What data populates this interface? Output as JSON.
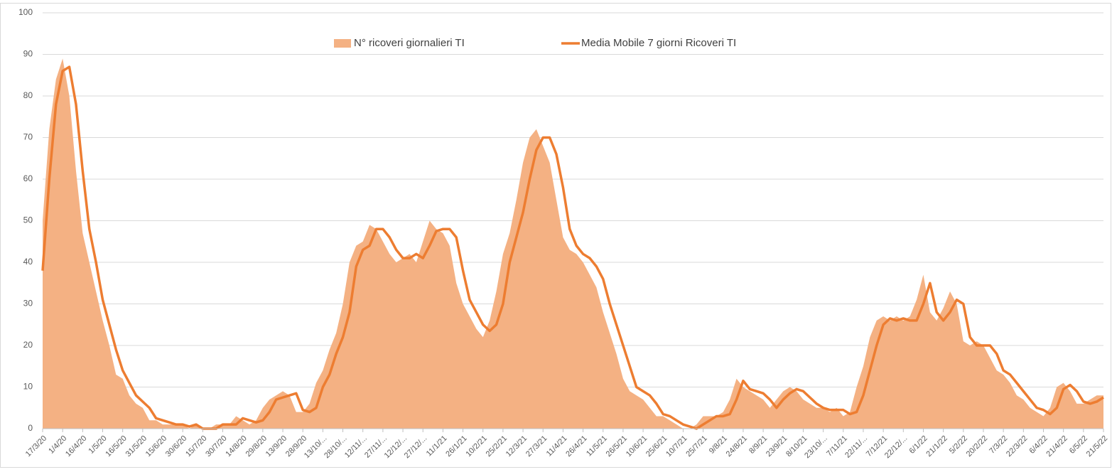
{
  "chart_data": {
    "type": "area-line",
    "categories": [
      "17/3/20",
      null,
      null,
      "1/4/20",
      null,
      null,
      "16/4/20",
      null,
      null,
      "1/5/20",
      null,
      null,
      "16/5/20",
      null,
      null,
      "31/5/20",
      null,
      null,
      "15/6/20",
      null,
      null,
      "30/6/20",
      null,
      null,
      "15/7/20",
      null,
      null,
      "30/7/20",
      null,
      null,
      "14/8/20",
      null,
      null,
      "29/8/20",
      null,
      null,
      "13/9/20",
      null,
      null,
      "28/9/20",
      null,
      null,
      "13/10/...",
      null,
      null,
      "28/10/...",
      null,
      null,
      "12/11/...",
      null,
      null,
      "27/11/...",
      null,
      null,
      "12/12/...",
      null,
      null,
      "27/12/...",
      null,
      null,
      "11/1/21",
      null,
      null,
      "26/1/21",
      null,
      null,
      "10/2/21",
      null,
      null,
      "25/2/21",
      null,
      null,
      "12/3/21",
      null,
      null,
      "27/3/21",
      null,
      null,
      "11/4/21",
      null,
      null,
      "26/4/21",
      null,
      null,
      "11/5/21",
      null,
      null,
      "26/5/21",
      null,
      null,
      "10/6/21",
      null,
      null,
      "25/6/21",
      null,
      null,
      "10/7/21",
      null,
      null,
      "25/7/21",
      null,
      null,
      "9/8/21",
      null,
      null,
      "24/8/21",
      null,
      null,
      "8/9/21",
      null,
      null,
      "23/9/21",
      null,
      null,
      "8/10/21",
      null,
      null,
      "23/10/...",
      null,
      null,
      "7/11/21",
      null,
      null,
      "22/11/...",
      null,
      null,
      "7/12/21",
      null,
      null,
      "22/12/...",
      null,
      null,
      "6/1/22",
      null,
      null,
      "21/1/22",
      null,
      null,
      "5/2/22",
      null,
      null,
      "20/2/22",
      null,
      null,
      "7/3/22",
      null,
      null,
      "22/3/22",
      null,
      null,
      "6/4/22",
      null,
      null,
      "21/4/22",
      null,
      null,
      "6/5/22",
      null,
      null,
      "21/5/22"
    ],
    "series": [
      {
        "name": "N° ricoveri giornalieri TI",
        "kind": "area",
        "color": "#f4b183",
        "values": [
          50,
          72,
          84,
          89,
          80,
          62,
          47,
          40,
          33,
          26,
          20,
          13,
          12,
          8,
          6,
          5,
          2,
          2,
          1,
          1,
          1,
          1,
          0,
          1,
          0,
          0,
          1,
          1,
          1,
          3,
          2,
          1,
          2,
          5,
          7,
          8,
          9,
          8,
          4,
          4,
          6,
          11,
          14,
          19,
          23,
          30,
          40,
          44,
          45,
          49,
          48,
          45,
          42,
          40,
          41,
          42,
          40,
          45,
          50,
          48,
          47,
          44,
          35,
          30,
          27,
          24,
          22,
          26,
          33,
          42,
          47,
          55,
          64,
          70,
          72,
          68,
          64,
          55,
          46,
          43,
          42,
          40,
          37,
          34,
          28,
          23,
          18,
          12,
          9,
          8,
          7,
          5,
          3,
          3,
          2,
          1,
          0,
          0,
          1,
          3,
          3,
          3,
          4,
          7,
          12,
          10,
          9,
          8,
          7,
          5,
          7,
          9,
          10,
          9,
          7,
          6,
          5,
          5,
          4,
          5,
          3,
          4,
          10,
          15,
          22,
          26,
          27,
          26,
          27,
          26,
          27,
          31,
          37,
          28,
          26,
          29,
          33,
          30,
          21,
          20,
          21,
          20,
          17,
          14,
          13,
          11,
          8,
          7,
          5,
          4,
          3,
          5,
          10,
          11,
          9,
          6,
          6,
          7,
          8,
          8
        ]
      },
      {
        "name": "Media Mobile 7 giorni Ricoveri TI",
        "kind": "line",
        "color": "#ed7d31",
        "values": [
          38,
          60,
          78,
          86,
          87,
          78,
          62,
          48,
          40,
          31,
          25,
          19,
          14,
          11,
          8,
          6.5,
          5,
          2.5,
          2,
          1.5,
          1,
          1,
          0.5,
          1,
          0,
          0,
          0,
          1,
          1,
          1,
          2.5,
          2,
          1.5,
          2,
          4,
          7,
          7.5,
          8,
          8.5,
          4.5,
          4,
          5,
          10,
          13,
          18,
          22,
          28,
          39,
          43,
          44,
          48,
          48,
          46,
          43,
          41,
          41,
          42,
          41,
          44,
          47.5,
          48,
          48,
          46,
          38,
          31,
          28,
          25,
          23.5,
          25,
          30,
          40,
          46,
          52,
          60,
          67,
          70,
          70,
          66,
          58,
          48,
          44,
          42,
          41,
          39,
          36,
          30,
          25,
          20,
          15,
          10,
          9,
          8,
          6,
          3.5,
          3,
          2,
          1,
          0.5,
          0,
          1,
          2,
          3,
          3,
          3.5,
          7,
          11.5,
          9.5,
          9,
          8.5,
          7,
          5,
          7,
          8.5,
          9.5,
          9,
          7.5,
          6,
          5,
          4.5,
          4.5,
          4.5,
          3.5,
          4,
          8,
          14,
          20,
          25,
          26.5,
          26,
          26.5,
          26,
          26,
          30,
          35,
          28,
          26,
          28,
          31,
          30,
          22,
          20,
          20,
          20,
          18,
          14,
          13,
          11,
          9,
          7,
          5,
          4.5,
          3.5,
          5,
          9.5,
          10.5,
          9,
          6.5,
          6,
          6.5,
          7.5
        ]
      }
    ],
    "ylim": [
      0,
      100
    ],
    "yticks": [
      0,
      10,
      20,
      30,
      40,
      50,
      60,
      70,
      80,
      90,
      100
    ],
    "grid": true,
    "legend": "top"
  }
}
